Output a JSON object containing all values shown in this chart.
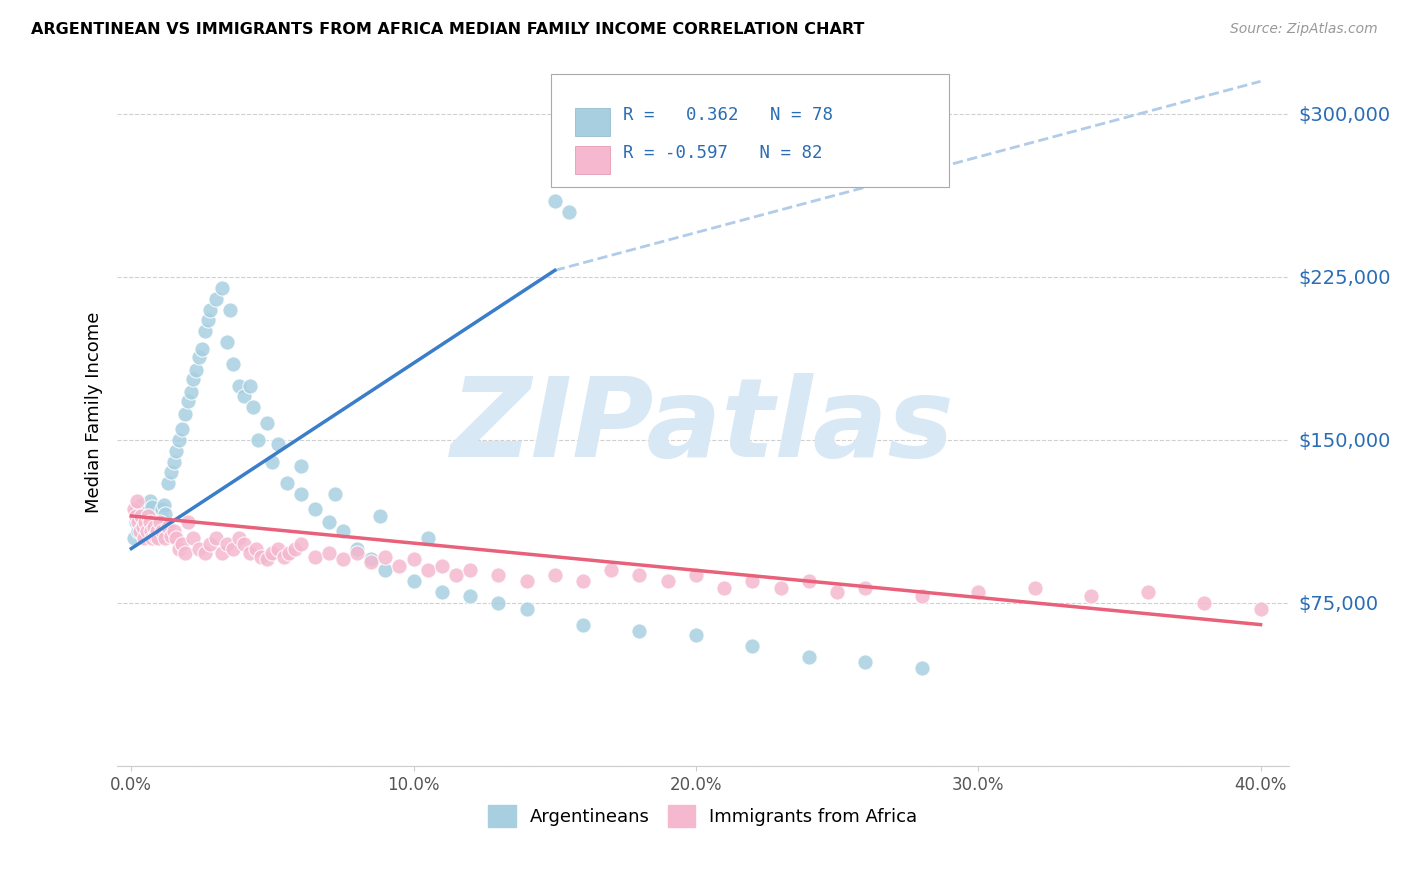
{
  "title": "ARGENTINEAN VS IMMIGRANTS FROM AFRICA MEDIAN FAMILY INCOME CORRELATION CHART",
  "source": "Source: ZipAtlas.com",
  "ylabel": "Median Family Income",
  "yticks": [
    0,
    75000,
    150000,
    225000,
    300000
  ],
  "ytick_labels": [
    "",
    "$75,000",
    "$150,000",
    "$225,000",
    "$300,000"
  ],
  "ylim": [
    0,
    325000
  ],
  "xlim": [
    -0.5,
    41.0
  ],
  "xtick_vals": [
    0,
    10,
    20,
    30,
    40
  ],
  "xtick_labels": [
    "0.0%",
    "10.0%",
    "20.0%",
    "30.0%",
    "40.0%"
  ],
  "R_blue": 0.362,
  "N_blue": 78,
  "R_pink": -0.597,
  "N_pink": 82,
  "blue_dot_color": "#a8cfe0",
  "pink_dot_color": "#f5b8ce",
  "blue_line_color": "#3a7dc9",
  "pink_line_color": "#e8607a",
  "dashed_line_color": "#b0cce8",
  "watermark_color": "#d8e8f5",
  "watermark_text": "ZIPatlas",
  "legend_label_blue": "Argentineans",
  "legend_label_pink": "Immigrants from Africa",
  "blue_solid_x0": 0.0,
  "blue_solid_y0": 100000,
  "blue_solid_x1": 15.0,
  "blue_solid_y1": 228000,
  "blue_dashed_x0": 15.0,
  "blue_dashed_y0": 228000,
  "blue_dashed_x1": 40.0,
  "blue_dashed_y1": 315000,
  "pink_solid_x0": 0.0,
  "pink_solid_y0": 115000,
  "pink_solid_x1": 40.0,
  "pink_solid_y1": 65000,
  "blue_scatter_x": [
    0.1,
    0.15,
    0.2,
    0.25,
    0.3,
    0.35,
    0.4,
    0.45,
    0.5,
    0.55,
    0.6,
    0.65,
    0.7,
    0.75,
    0.8,
    0.85,
    0.9,
    0.95,
    1.0,
    1.05,
    1.1,
    1.15,
    1.2,
    1.3,
    1.4,
    1.5,
    1.6,
    1.7,
    1.8,
    1.9,
    2.0,
    2.1,
    2.2,
    2.3,
    2.4,
    2.5,
    2.6,
    2.7,
    2.8,
    3.0,
    3.2,
    3.4,
    3.6,
    3.8,
    4.0,
    4.3,
    4.5,
    5.0,
    5.5,
    6.0,
    6.5,
    7.0,
    7.5,
    8.0,
    8.5,
    9.0,
    10.0,
    11.0,
    12.0,
    13.0,
    14.0,
    16.0,
    18.0,
    20.0,
    15.0,
    15.5,
    22.0,
    24.0,
    26.0,
    28.0,
    3.5,
    4.2,
    4.8,
    5.2,
    6.0,
    7.2,
    8.8,
    10.5
  ],
  "blue_scatter_y": [
    105000,
    112000,
    118000,
    108000,
    115000,
    120000,
    110000,
    116000,
    113000,
    108000,
    118000,
    122000,
    115000,
    119000,
    112000,
    106000,
    110000,
    108000,
    115000,
    112000,
    118000,
    120000,
    116000,
    130000,
    135000,
    140000,
    145000,
    150000,
    155000,
    162000,
    168000,
    172000,
    178000,
    182000,
    188000,
    192000,
    200000,
    205000,
    210000,
    215000,
    220000,
    195000,
    185000,
    175000,
    170000,
    165000,
    150000,
    140000,
    130000,
    125000,
    118000,
    112000,
    108000,
    100000,
    95000,
    90000,
    85000,
    80000,
    78000,
    75000,
    72000,
    65000,
    62000,
    60000,
    260000,
    255000,
    55000,
    50000,
    48000,
    45000,
    210000,
    175000,
    158000,
    148000,
    138000,
    125000,
    115000,
    105000
  ],
  "pink_scatter_x": [
    0.1,
    0.15,
    0.2,
    0.25,
    0.3,
    0.35,
    0.4,
    0.45,
    0.5,
    0.55,
    0.6,
    0.65,
    0.7,
    0.75,
    0.8,
    0.85,
    0.9,
    0.95,
    1.0,
    1.1,
    1.2,
    1.3,
    1.4,
    1.5,
    1.6,
    1.7,
    1.8,
    1.9,
    2.0,
    2.2,
    2.4,
    2.6,
    2.8,
    3.0,
    3.2,
    3.4,
    3.6,
    3.8,
    4.0,
    4.2,
    4.4,
    4.6,
    4.8,
    5.0,
    5.2,
    5.4,
    5.6,
    5.8,
    6.0,
    6.5,
    7.0,
    7.5,
    8.0,
    8.5,
    9.0,
    9.5,
    10.0,
    10.5,
    11.0,
    11.5,
    12.0,
    13.0,
    14.0,
    15.0,
    16.0,
    17.0,
    18.0,
    19.0,
    20.0,
    21.0,
    22.0,
    23.0,
    24.0,
    25.0,
    26.0,
    28.0,
    30.0,
    32.0,
    34.0,
    36.0,
    38.0,
    40.0
  ],
  "pink_scatter_y": [
    118000,
    115000,
    122000,
    112000,
    108000,
    115000,
    110000,
    105000,
    112000,
    108000,
    115000,
    112000,
    108000,
    105000,
    110000,
    106000,
    108000,
    105000,
    112000,
    108000,
    105000,
    110000,
    106000,
    108000,
    105000,
    100000,
    102000,
    98000,
    112000,
    105000,
    100000,
    98000,
    102000,
    105000,
    98000,
    102000,
    100000,
    105000,
    102000,
    98000,
    100000,
    96000,
    95000,
    98000,
    100000,
    96000,
    98000,
    100000,
    102000,
    96000,
    98000,
    95000,
    98000,
    94000,
    96000,
    92000,
    95000,
    90000,
    92000,
    88000,
    90000,
    88000,
    85000,
    88000,
    85000,
    90000,
    88000,
    85000,
    88000,
    82000,
    85000,
    82000,
    85000,
    80000,
    82000,
    78000,
    80000,
    82000,
    78000,
    80000,
    75000,
    72000
  ]
}
